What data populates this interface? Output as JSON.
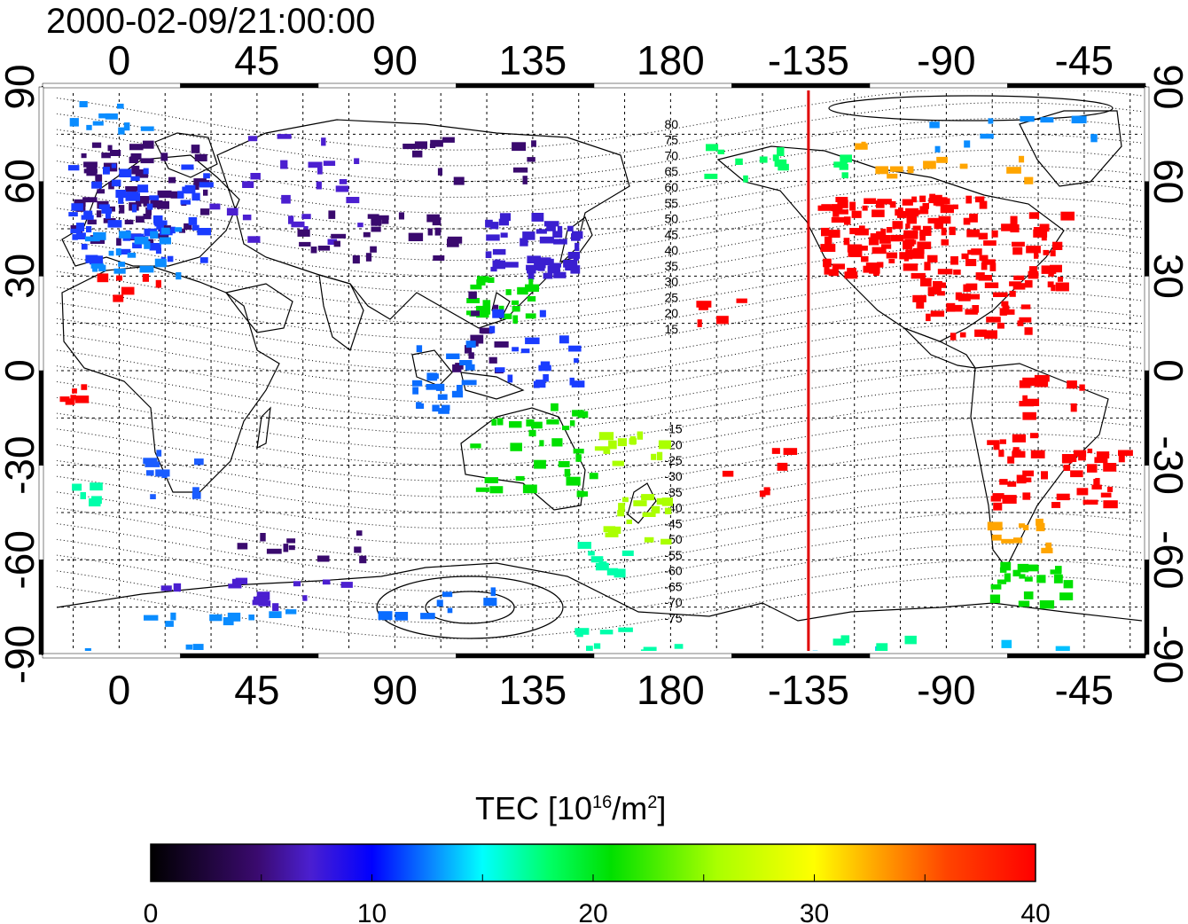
{
  "title": "2000-02-09/21:00:00",
  "map": {
    "lon_ticks": [
      "0",
      "45",
      "90",
      "135",
      "180",
      "-135",
      "-90",
      "-45"
    ],
    "lon_tick_values": [
      0,
      45,
      90,
      135,
      180,
      225,
      270,
      315
    ],
    "lat_ticks": [
      "90",
      "60",
      "30",
      "0",
      "-30",
      "-60",
      "-90"
    ],
    "lat_tick_values": [
      90,
      60,
      30,
      0,
      -30,
      -60,
      -90
    ],
    "lon_range": [
      -25,
      335
    ],
    "lat_range": [
      -90,
      90
    ],
    "marker_longitude": -135,
    "marker_color": "#e00000",
    "magnetic_latitude_labels_north": [
      "80",
      "75",
      "70",
      "65",
      "60",
      "55",
      "50",
      "45",
      "40",
      "35",
      "30",
      "25",
      "20",
      "15"
    ],
    "magnetic_latitude_labels_south": [
      "-15",
      "-20",
      "-25",
      "-30",
      "-35",
      "-40",
      "-45",
      "-50",
      "-55",
      "-60",
      "-65",
      "-70",
      "-75"
    ]
  },
  "colorbar": {
    "title": "TEC  [10",
    "title_sup": "16",
    "title_unit": "/m",
    "title_unit_sup": "2",
    "title_close": "]",
    "tick_labels": [
      "0",
      "10",
      "20",
      "30",
      "40"
    ],
    "range": [
      0,
      40
    ],
    "colors": [
      "#000000",
      "#3a0a6e",
      "#4b1fd0",
      "#0000ff",
      "#0a8cff",
      "#00ffff",
      "#00ff66",
      "#00e000",
      "#aaff00",
      "#ffff00",
      "#ffa500",
      "#ff4400",
      "#ff0000"
    ]
  }
}
